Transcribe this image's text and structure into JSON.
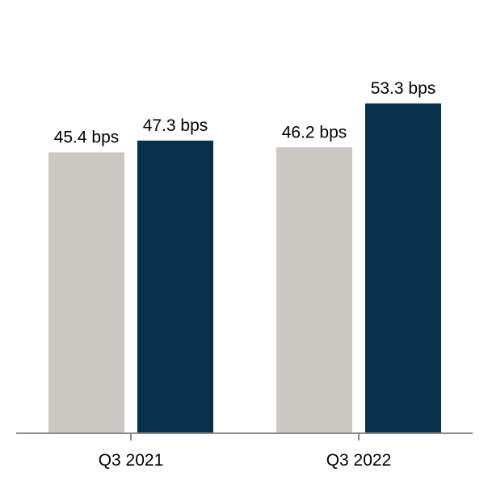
{
  "chart_data": {
    "type": "bar",
    "categories": [
      "Q3 2021",
      "Q3 2022"
    ],
    "series": [
      {
        "values": [
          45.4,
          46.2
        ],
        "labels": [
          "45.4 bps",
          "46.2 bps"
        ],
        "color": "#cbc8c4"
      },
      {
        "values": [
          47.3,
          53.3
        ],
        "labels": [
          "47.3 bps",
          "53.3 bps"
        ],
        "color": "#07304b"
      }
    ],
    "unit": "bps",
    "ylim": [
      0,
      58
    ],
    "grid": false,
    "legend": "none",
    "axis_color": "#8a8a8a"
  }
}
